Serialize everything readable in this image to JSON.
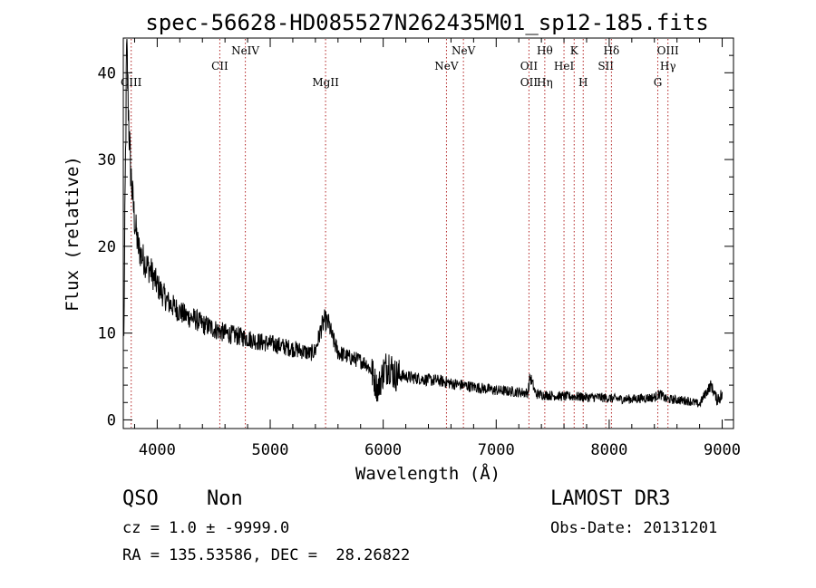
{
  "chart_data": {
    "type": "line",
    "title": "spec-56628-HD085527N262435M01_sp12-185.fits",
    "xlabel": "Wavelength (Å)",
    "ylabel": "Flux (relative)",
    "xlim": [
      3700,
      9100
    ],
    "ylim": [
      -1,
      44
    ],
    "xticks": [
      "4000",
      "5000",
      "6000",
      "7000",
      "8000",
      "9000"
    ],
    "yticks": [
      "0",
      "10",
      "20",
      "30",
      "40"
    ],
    "grid": false,
    "series": [
      {
        "x": [
          3700,
          3715,
          3730,
          3745,
          3760,
          3780,
          3800,
          3830,
          3860,
          3900,
          3950,
          4000,
          4050,
          4100,
          4150,
          4200,
          4250,
          4300,
          4350,
          4400,
          4450,
          4500,
          4600,
          4700,
          4800,
          4900,
          5000,
          5100,
          5200,
          5300,
          5350,
          5400,
          5450,
          5480,
          5520,
          5550,
          5600,
          5650,
          5700,
          5750,
          5800,
          5850,
          5900,
          5950,
          6000,
          6050,
          6100,
          6200,
          6300,
          6400,
          6500,
          6600,
          6700,
          6800,
          6900,
          7000,
          7100,
          7200,
          7280,
          7300,
          7350,
          7400,
          7500,
          7600,
          7700,
          7800,
          7900,
          8000,
          8100,
          8200,
          8300,
          8400,
          8450,
          8500,
          8600,
          8700,
          8750,
          8800,
          8850,
          8900,
          8950,
          9000
        ],
        "y": [
          2,
          24,
          43,
          36,
          30,
          26,
          23,
          20,
          19,
          18,
          17,
          15.5,
          14.5,
          13.5,
          13,
          12.5,
          12,
          11.8,
          11.5,
          11,
          10.8,
          10.5,
          10,
          9.7,
          9.4,
          9,
          8.8,
          8.5,
          8.2,
          7.9,
          7.6,
          8,
          10.5,
          11.5,
          11,
          9.5,
          7.8,
          7.5,
          7.2,
          7.0,
          6.8,
          6.5,
          5.5,
          3.5,
          5.5,
          6.5,
          5.2,
          5.0,
          4.8,
          4.6,
          4.5,
          4.2,
          4.0,
          3.8,
          3.6,
          3.4,
          3.3,
          3.2,
          3.1,
          5.0,
          3.0,
          2.9,
          2.8,
          2.7,
          2.7,
          2.6,
          2.6,
          2.5,
          2.4,
          2.4,
          2.5,
          2.6,
          3.0,
          2.4,
          2.3,
          2.2,
          2.0,
          1.8,
          3.0,
          4.0,
          2.5,
          2.8
        ]
      }
    ],
    "line_marks": [
      {
        "wave": 4554,
        "labels": [
          "CII"
        ],
        "rows": [
          2
        ]
      },
      {
        "wave": 4780,
        "labels": [
          "NeIV"
        ],
        "rows": [
          1
        ]
      },
      {
        "wave": 5490,
        "labels": [
          "MgII"
        ],
        "rows": [
          3
        ]
      },
      {
        "wave": 6560,
        "labels": [
          "NeV"
        ],
        "rows": [
          2
        ]
      },
      {
        "wave": 6710,
        "labels": [
          "NeV"
        ],
        "rows": [
          1
        ]
      },
      {
        "wave": 7290,
        "labels": [
          "OII",
          "OII"
        ],
        "rows": [
          2,
          3
        ]
      },
      {
        "wave": 7430,
        "labels": [
          "Hθ",
          "Hη"
        ],
        "rows": [
          1,
          3
        ]
      },
      {
        "wave": 7600,
        "labels": [
          "HeI"
        ],
        "rows": [
          2
        ]
      },
      {
        "wave": 7690,
        "labels": [
          "K"
        ],
        "rows": [
          1
        ]
      },
      {
        "wave": 7770,
        "labels": [
          "H"
        ],
        "rows": [
          3
        ]
      },
      {
        "wave": 7970,
        "labels": [
          "SII"
        ],
        "rows": [
          2
        ]
      },
      {
        "wave": 8020,
        "labels": [
          "Hδ"
        ],
        "rows": [
          1
        ]
      },
      {
        "wave": 8430,
        "labels": [
          "G"
        ],
        "rows": [
          3
        ]
      },
      {
        "wave": 8520,
        "labels": [
          "OIII",
          "Hγ"
        ],
        "rows": [
          1,
          2
        ]
      },
      {
        "wave": 3770,
        "labels": [
          "CIII"
        ],
        "rows": [
          3
        ]
      }
    ]
  },
  "info": {
    "class": "QSO",
    "subclass": "Non",
    "survey": "LAMOST DR3",
    "redshift": "cz = 1.0 ± -9999.0",
    "obs_date": "Obs-Date: 20131201",
    "coords": "RA = 135.53586, DEC =  28.26822"
  }
}
